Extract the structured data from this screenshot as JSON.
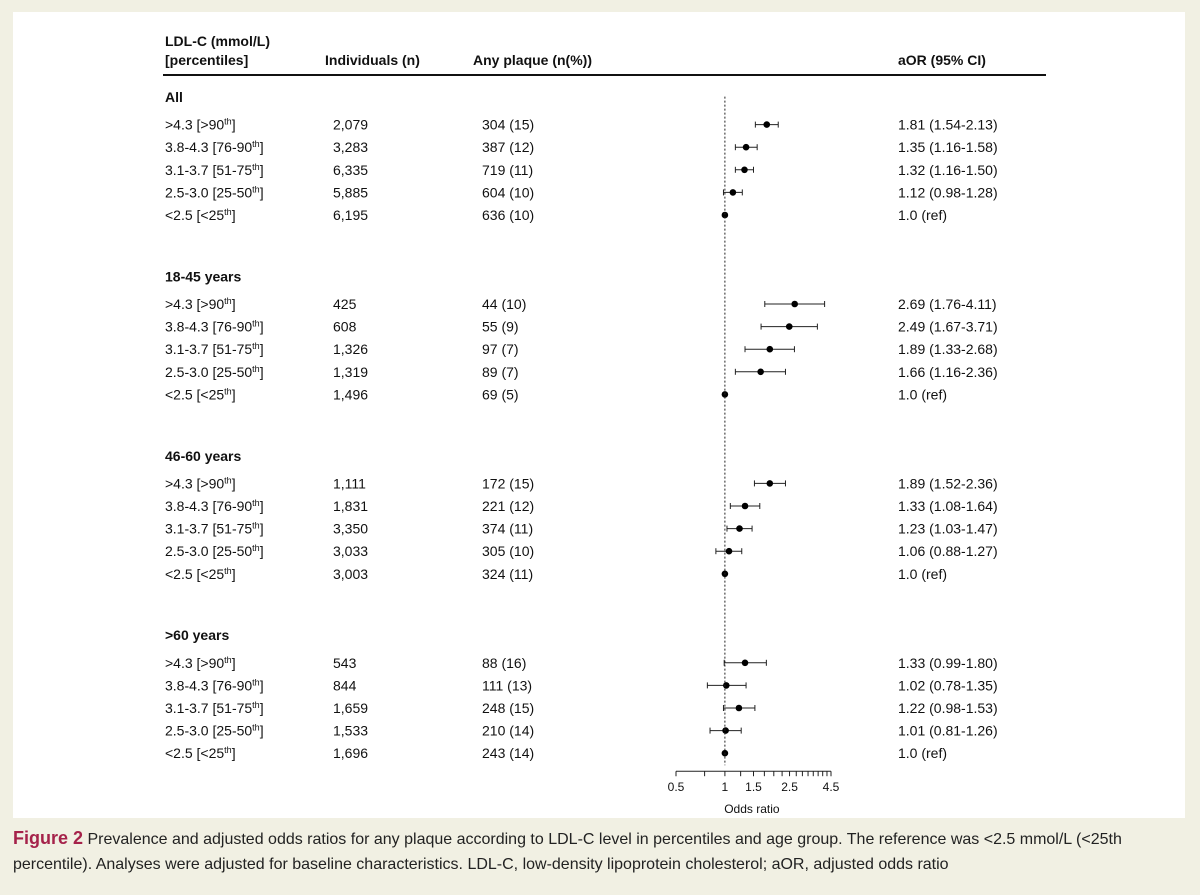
{
  "headers": {
    "ldl_line1": "LDL-C (mmol/L)",
    "ldl_line2": "[percentiles]",
    "individuals": "Individuals (n)",
    "plaque": "Any plaque (n(%))",
    "aor": "aOR (95% CI)"
  },
  "chart_data": {
    "type": "forest",
    "title": "",
    "xlabel": "Odds ratio",
    "ylabel": "",
    "x_scale": "log",
    "xlim": [
      0.5,
      4.5
    ],
    "x_ticks": [
      {
        "value": 0.5,
        "label": "0.5"
      },
      {
        "value": 1,
        "label": "1"
      },
      {
        "value": 1.5,
        "label": "1.5"
      },
      {
        "value": 2.5,
        "label": "2.5"
      },
      {
        "value": 4.5,
        "label": "4.5"
      }
    ],
    "reference_line": 1,
    "groups": [
      {
        "name": "All",
        "rows": [
          {
            "level": ">4.3 [>90",
            "sup": "th",
            "level_tail": "]",
            "n": "2,079",
            "plaque": "304 (15)",
            "aor_text": "1.81 (1.54-2.13)",
            "or": 1.81,
            "lo": 1.54,
            "hi": 2.13
          },
          {
            "level": "3.8-4.3 [76-90",
            "sup": "th",
            "level_tail": "]",
            "n": "3,283",
            "plaque": "387 (12)",
            "aor_text": "1.35 (1.16-1.58)",
            "or": 1.35,
            "lo": 1.16,
            "hi": 1.58
          },
          {
            "level": "3.1-3.7 [51-75",
            "sup": "th",
            "level_tail": "]",
            "n": "6,335",
            "plaque": "719 (11)",
            "aor_text": "1.32 (1.16-1.50)",
            "or": 1.32,
            "lo": 1.16,
            "hi": 1.5
          },
          {
            "level": "2.5-3.0 [25-50",
            "sup": "th",
            "level_tail": "]",
            "n": "5,885",
            "plaque": "604 (10)",
            "aor_text": "1.12 (0.98-1.28)",
            "or": 1.12,
            "lo": 0.98,
            "hi": 1.28
          },
          {
            "level": "<2.5 [<25",
            "sup": "th",
            "level_tail": "]",
            "n": "6,195",
            "plaque": "636 (10)",
            "aor_text": "1.0 (ref)",
            "or": 1.0,
            "lo": 1.0,
            "hi": 1.0
          }
        ]
      },
      {
        "name": "18-45 years",
        "rows": [
          {
            "level": ">4.3 [>90",
            "sup": "th",
            "level_tail": "]",
            "n": "425",
            "plaque": "44 (10)",
            "aor_text": "2.69 (1.76-4.11)",
            "or": 2.69,
            "lo": 1.76,
            "hi": 4.11
          },
          {
            "level": "3.8-4.3 [76-90",
            "sup": "th",
            "level_tail": "]",
            "n": "608",
            "plaque": "55 (9)",
            "aor_text": "2.49 (1.67-3.71)",
            "or": 2.49,
            "lo": 1.67,
            "hi": 3.71
          },
          {
            "level": "3.1-3.7 [51-75",
            "sup": "th",
            "level_tail": "]",
            "n": "1,326",
            "plaque": "97 (7)",
            "aor_text": "1.89 (1.33-2.68)",
            "or": 1.89,
            "lo": 1.33,
            "hi": 2.68
          },
          {
            "level": "2.5-3.0 [25-50",
            "sup": "th",
            "level_tail": "]",
            "n": "1,319",
            "plaque": "89 (7)",
            "aor_text": "1.66 (1.16-2.36)",
            "or": 1.66,
            "lo": 1.16,
            "hi": 2.36
          },
          {
            "level": "<2.5 [<25",
            "sup": "th",
            "level_tail": "]",
            "n": "1,496",
            "plaque": "69 (5)",
            "aor_text": "1.0 (ref)",
            "or": 1.0,
            "lo": 1.0,
            "hi": 1.0
          }
        ]
      },
      {
        "name": "46-60 years",
        "rows": [
          {
            "level": ">4.3 [>90",
            "sup": "th",
            "level_tail": "]",
            "n": "1,111",
            "plaque": "172 (15)",
            "aor_text": "1.89 (1.52-2.36)",
            "or": 1.89,
            "lo": 1.52,
            "hi": 2.36
          },
          {
            "level": "3.8-4.3 [76-90",
            "sup": "th",
            "level_tail": "]",
            "n": "1,831",
            "plaque": "221 (12)",
            "aor_text": "1.33 (1.08-1.64)",
            "or": 1.33,
            "lo": 1.08,
            "hi": 1.64
          },
          {
            "level": "3.1-3.7 [51-75",
            "sup": "th",
            "level_tail": "]",
            "n": "3,350",
            "plaque": "374 (11)",
            "aor_text": "1.23 (1.03-1.47)",
            "or": 1.23,
            "lo": 1.03,
            "hi": 1.47
          },
          {
            "level": "2.5-3.0 [25-50",
            "sup": "th",
            "level_tail": "]",
            "n": "3,033",
            "plaque": "305 (10)",
            "aor_text": "1.06 (0.88-1.27)",
            "or": 1.06,
            "lo": 0.88,
            "hi": 1.27
          },
          {
            "level": "<2.5 [<25",
            "sup": "th",
            "level_tail": "]",
            "n": "3,003",
            "plaque": "324 (11)",
            "aor_text": "1.0 (ref)",
            "or": 1.0,
            "lo": 1.0,
            "hi": 1.0
          }
        ]
      },
      {
        "name": ">60 years",
        "rows": [
          {
            "level": ">4.3 [>90",
            "sup": "th",
            "level_tail": "]",
            "n": "543",
            "plaque": "88 (16)",
            "aor_text": "1.33 (0.99-1.80)",
            "or": 1.33,
            "lo": 0.99,
            "hi": 1.8
          },
          {
            "level": "3.8-4.3 [76-90",
            "sup": "th",
            "level_tail": "]",
            "n": "844",
            "plaque": "111 (13)",
            "aor_text": "1.02 (0.78-1.35)",
            "or": 1.02,
            "lo": 0.78,
            "hi": 1.35
          },
          {
            "level": "3.1-3.7 [51-75",
            "sup": "th",
            "level_tail": "]",
            "n": "1,659",
            "plaque": "248 (15)",
            "aor_text": "1.22 (0.98-1.53)",
            "or": 1.22,
            "lo": 0.98,
            "hi": 1.53
          },
          {
            "level": "2.5-3.0 [25-50",
            "sup": "th",
            "level_tail": "]",
            "n": "1,533",
            "plaque": "210 (14)",
            "aor_text": "1.01 (0.81-1.26)",
            "or": 1.01,
            "lo": 0.81,
            "hi": 1.26
          },
          {
            "level": "<2.5 [<25",
            "sup": "th",
            "level_tail": "]",
            "n": "1,696",
            "plaque": "243 (14)",
            "aor_text": "1.0 (ref)",
            "or": 1.0,
            "lo": 1.0,
            "hi": 1.0
          }
        ]
      }
    ]
  },
  "caption": {
    "label": "Figure 2",
    "text": "Prevalence and adjusted odds ratios for any plaque according to LDL-C level in percentiles and age group. The reference was <2.5 mmol/L (<25th percentile). Analyses were adjusted for baseline characteristics. LDL-C, low-density lipoprotein cholesterol; aOR, adjusted odds ratio"
  },
  "colors": {
    "background": "#f1f0e3",
    "panel": "#ffffff",
    "ink": "#111111",
    "figure_label": "#a5224a"
  }
}
